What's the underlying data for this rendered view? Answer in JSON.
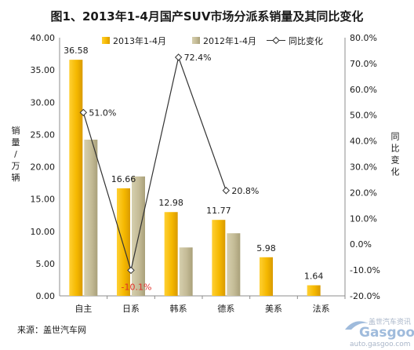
{
  "chart_data": {
    "type": "bar",
    "title": "图1、2013年1-4月国产SUV市场分派系销量及其同比变化",
    "categories": [
      "自主",
      "日系",
      "韩系",
      "德系",
      "美系",
      "法系"
    ],
    "ylabel": "销量/万辆",
    "y2label": "同比变化",
    "ylim": [
      0,
      40
    ],
    "y2lim": [
      -20,
      80
    ],
    "yticks": [
      "0.00",
      "5.00",
      "10.00",
      "15.00",
      "20.00",
      "25.00",
      "30.00",
      "35.00",
      "40.00"
    ],
    "y2ticks": [
      "-20.0%",
      "-10.0%",
      "0.0%",
      "10.0%",
      "20.0%",
      "30.0%",
      "40.0%",
      "50.0%",
      "60.0%",
      "70.0%",
      "80.0%"
    ],
    "legend_position": "top",
    "grid": false,
    "series": [
      {
        "name": "2013年1-4月",
        "type": "bar",
        "color": "#f5b800",
        "values": [
          36.58,
          16.66,
          12.98,
          11.77,
          5.98,
          1.64
        ],
        "labels": [
          "36.58",
          "16.66",
          "12.98",
          "11.77",
          "5.98",
          "1.64"
        ]
      },
      {
        "name": "2012年1-4月",
        "type": "bar",
        "color": "#c4bb96",
        "values": [
          24.2,
          18.5,
          7.5,
          9.7,
          null,
          null
        ]
      },
      {
        "name": "同比变化",
        "type": "line",
        "axis": "right",
        "color": "#333333",
        "values": [
          51.0,
          -10.1,
          72.4,
          20.8,
          null,
          null
        ],
        "labels": [
          "51.0%",
          "-10.1%",
          "72.4%",
          "20.8%",
          "",
          ""
        ]
      }
    ]
  },
  "source": "来源：盖世汽车网",
  "watermark": {
    "brand": "Gasgoo",
    "url": "auto.gasgoo.com",
    "tagline": "盖世汽车资讯"
  }
}
